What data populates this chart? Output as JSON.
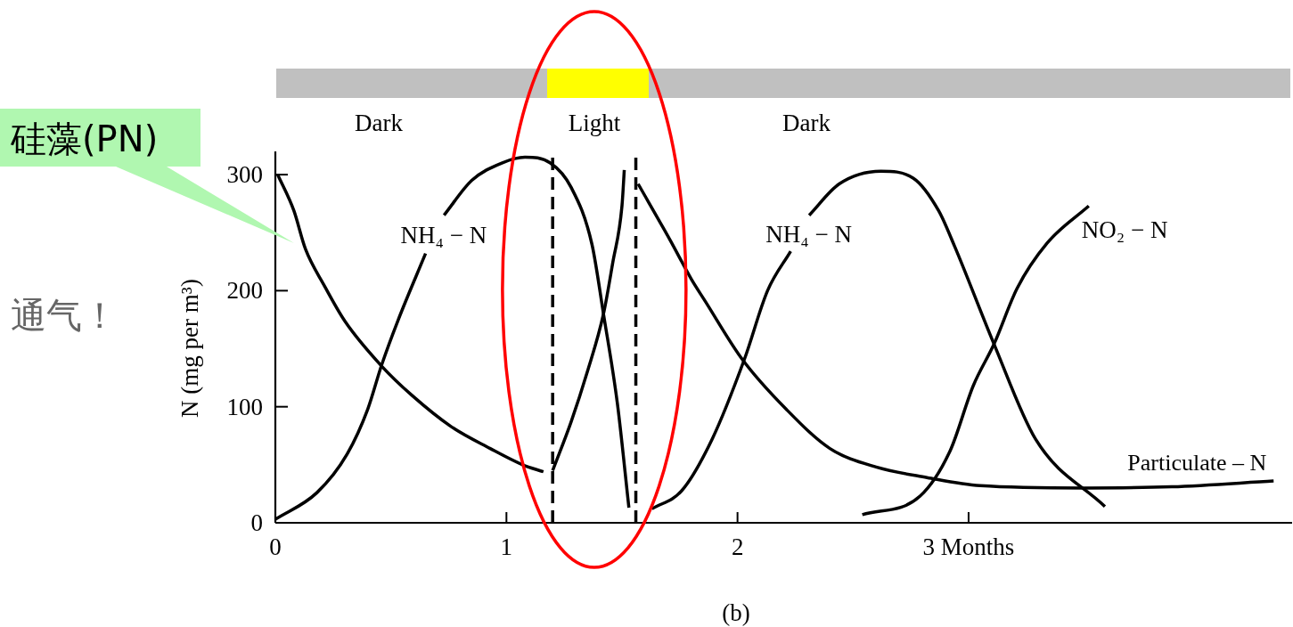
{
  "chart_data": {
    "type": "line",
    "ylabel": "N (mg per m³)",
    "line_style": "solid",
    "xlim": [
      0,
      4.4
    ],
    "ylim": [
      0,
      320
    ],
    "xticks": [
      0,
      1,
      2,
      {
        "value": 3,
        "label": "3 Months"
      }
    ],
    "yticks": [
      0,
      100,
      200,
      300
    ],
    "ref_lines": [
      {
        "axis": "x",
        "value": 1.2,
        "line_style": "dashed",
        "color": "#000000"
      },
      {
        "axis": "x",
        "value": 1.56,
        "line_style": "dashed",
        "color": "#000000"
      }
    ],
    "annotations": [
      "Dark",
      "Light",
      "Dark",
      "硅藻(PN)",
      "通气！",
      "(b)"
    ],
    "series": [
      {
        "name": "Particulate – N",
        "color": "#000000",
        "x": [
          0.01,
          0.08,
          0.13,
          0.21,
          0.3,
          0.46,
          0.59,
          0.76,
          0.93,
          1.07,
          1.16,
          1.18,
          1.2,
          1.28,
          1.35,
          1.42,
          1.46,
          1.5,
          1.51,
          1.54,
          1.57,
          1.71,
          1.8,
          1.86,
          2.02,
          2.21,
          2.4,
          2.6,
          2.82,
          3.05,
          3.5,
          3.88,
          4.32
        ],
        "values": [
          300,
          269,
          236,
          205,
          174,
          135,
          110,
          83,
          64,
          50,
          44,
          null,
          45,
          87,
          130,
          180,
          224,
          273,
          304,
          null,
          292,
          243,
          210,
          191,
          141,
          98,
          64,
          48,
          39,
          32,
          30,
          31,
          36
        ]
      },
      {
        "name": "NH₄ − N",
        "color": "#000000",
        "x": [
          0.0,
          0.18,
          0.31,
          0.4,
          0.46,
          0.53,
          0.65,
          0.69,
          0.73,
          0.85,
          0.98,
          1.08,
          1.19,
          1.28,
          1.37,
          1.42,
          1.48,
          1.53
        ],
        "values": [
          3,
          26,
          59,
          98,
          136,
          174,
          232,
          null,
          265,
          295,
          310,
          315,
          310,
          289,
          240,
          180,
          103,
          13
        ]
      },
      {
        "name": "NH₄ − N",
        "color": "#000000",
        "x": [
          1.63,
          1.76,
          1.89,
          2.03,
          2.13,
          2.23,
          2.27,
          2.31,
          2.44,
          2.62,
          2.76,
          2.87,
          2.94,
          3.11,
          3.29,
          3.59
        ],
        "values": [
          12,
          28,
          72,
          141,
          200,
          234,
          null,
          265,
          292,
          303,
          297,
          269,
          238,
          154,
          72,
          14
        ]
      },
      {
        "name": "NO₂ − N",
        "color": "#000000",
        "x": [
          2.54,
          2.79,
          2.92,
          3.02,
          3.11,
          3.21,
          3.34,
          3.52
        ],
        "values": [
          7,
          23,
          62,
          118,
          154,
          202,
          241,
          273
        ]
      }
    ]
  }
}
